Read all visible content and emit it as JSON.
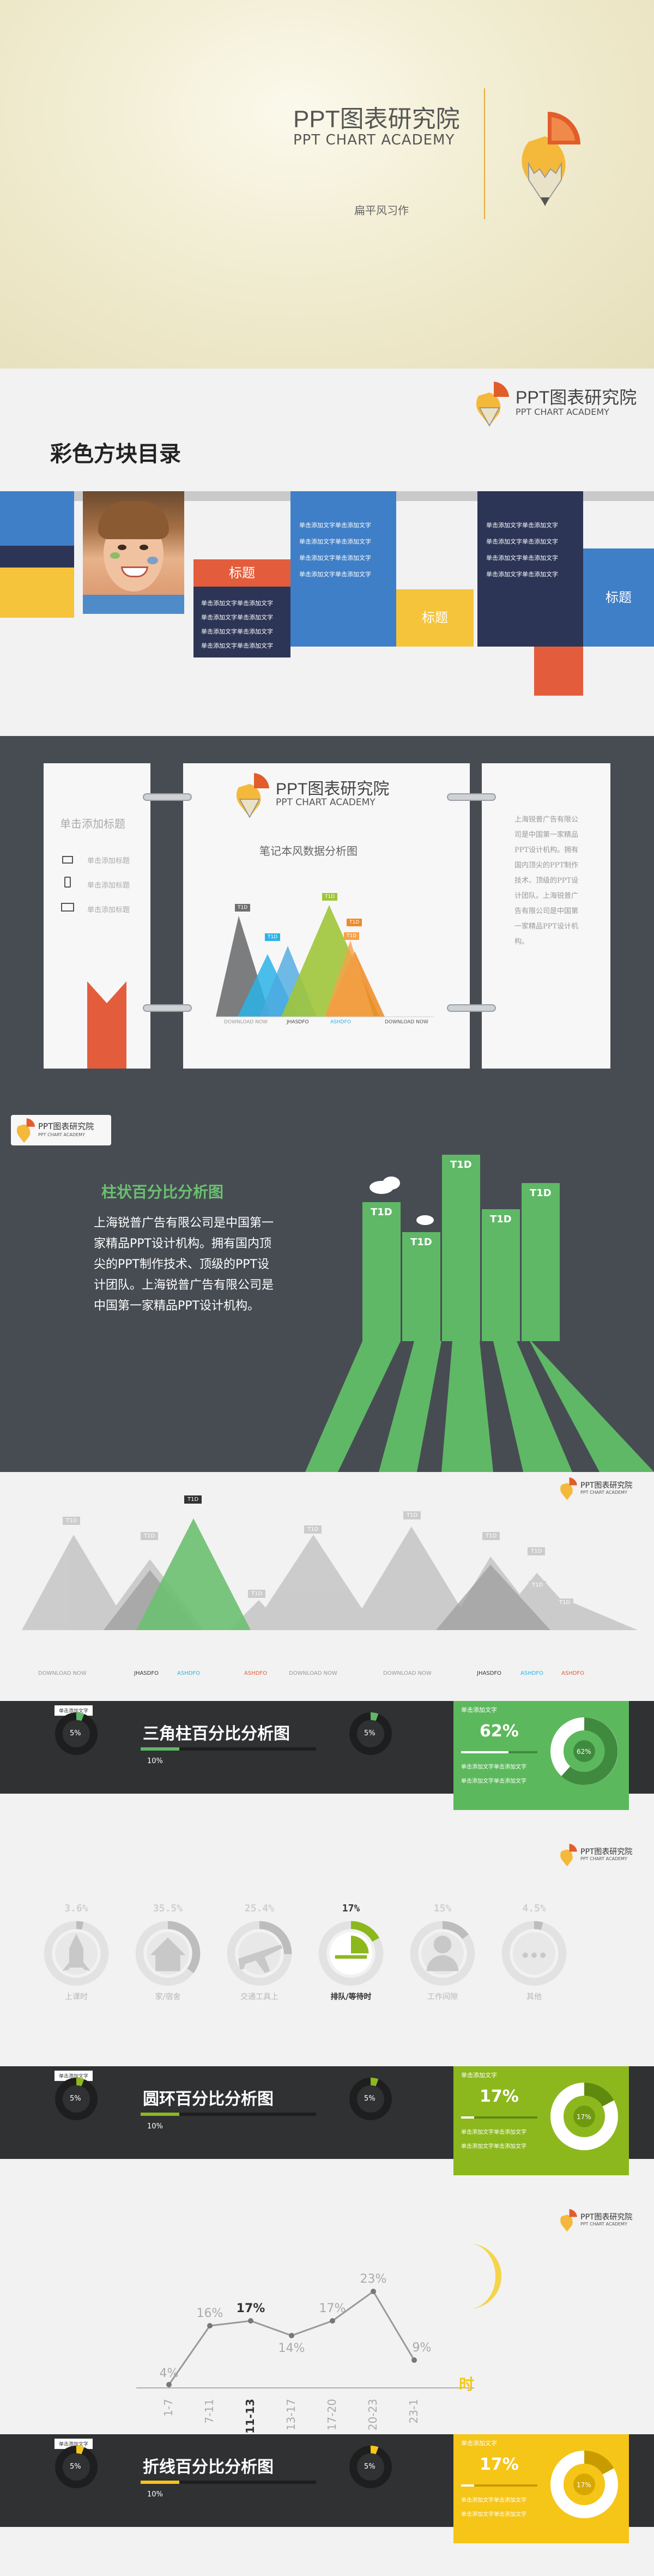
{
  "cover": {
    "title_cn": "PPT图表研究院",
    "title_en": "PPT CHART ACADEMY",
    "subtitle": "扁平风习作"
  },
  "brand": {
    "name_cn": "PPT图表研究院",
    "name_en": "PPT CHART ACADEMY"
  },
  "catalog": {
    "title": "彩色方块目录",
    "label": "标题",
    "filler": "单击添加文字单击添加文字",
    "colors": {
      "blue": "#3f7fc7",
      "yellow": "#f5c43a",
      "red": "#e35d3c",
      "navy": "#2c3556",
      "grey": "#c9c9c9"
    }
  },
  "notebook": {
    "left_title": "单击添加标题",
    "left_items": [
      "单击添加标题",
      "单击添加标题",
      "单击添加标题"
    ],
    "center_title": "笔记本风数据分析图",
    "tags": [
      "T1D",
      "T1D",
      "T1D",
      "T1D",
      "T1D"
    ],
    "x_labels": [
      "DOWNLOAD NOW",
      "JHASDFO",
      "ASHDFO",
      "DOWNLOAD NOW"
    ],
    "right_text": "上海锐普广告有限公司是中国第一家精品PPT设计机构。拥有国内顶尖的PPT制作技术、顶级的PPT设计团队。上海锐普广告有限公司是中国第一家精品PPT设计机构。"
  },
  "column": {
    "title": "柱状百分比分析图",
    "body": "上海锐普广告有限公司是中国第一家精品PPT设计机构。拥有国内顶尖的PPT制作技术、顶级的PPT设计团队。上海锐普广告有限公司是中国第一家精品PPT设计机构。",
    "bar_labels": [
      "T1D",
      "T1D",
      "T1D",
      "T1D",
      "T1D"
    ]
  },
  "triangle": {
    "tags": [
      "T1D",
      "T1D",
      "T1D",
      "T1D",
      "T1D",
      "T1D",
      "T1D",
      "T1D",
      "T1D",
      "T1D"
    ],
    "x_labels": [
      "DOWNLOAD NOW",
      "JHASDFO",
      "ASHDFO",
      "ASHDFO",
      "DOWNLOAD NOW",
      "DOWNLOAD NOW",
      "JHASDFO",
      "ASHDFO",
      "ASHDFO"
    ]
  },
  "panel_a": {
    "title": "三角柱百分比分析图",
    "tag": "单击添加文字",
    "pct_small": "5%",
    "pct_bar": "10%",
    "card_tag": "单击添加文字",
    "card_pct": "62%",
    "card_lines": [
      "单击添加文字单击添加文字",
      "单击添加文字单击添加文字"
    ],
    "card_donut": "62%",
    "card_color": "#5cb85c"
  },
  "ring": {
    "items": [
      {
        "pct": "3.6%",
        "label": "上课时",
        "icon": "rocket-icon"
      },
      {
        "pct": "35.5%",
        "label": "家/宿舍",
        "icon": "home-icon"
      },
      {
        "pct": "25.4%",
        "label": "交通工具上",
        "icon": "plane-icon"
      },
      {
        "pct": "17%",
        "label": "排队/等待时",
        "icon": "clock-icon"
      },
      {
        "pct": "15%",
        "label": "工作间隙",
        "icon": "person-icon"
      },
      {
        "pct": "4.5%",
        "label": "其他",
        "icon": "dots-icon"
      }
    ]
  },
  "panel_b": {
    "title": "圆环百分比分析图",
    "tag": "单击添加文字",
    "pct_small": "5%",
    "pct_bar": "10%",
    "card_tag": "单击添加文字",
    "card_pct": "17%",
    "card_lines": [
      "单击添加文字单击添加文字",
      "单击添加文字单击添加文字"
    ],
    "card_donut": "17%",
    "card_color": "#8cb81e"
  },
  "chart_data": {
    "type": "line",
    "categories": [
      "1-7",
      "7-11",
      "11-13",
      "13-17",
      "17-20",
      "20-23",
      "23-1"
    ],
    "values": [
      4,
      16,
      17,
      14,
      17,
      23,
      9
    ],
    "labels": [
      "4%",
      "16%",
      "17%",
      "14%",
      "17%",
      "23%",
      "9%"
    ],
    "x_caption": "时"
  },
  "panel_c": {
    "title": "折线百分比分析图",
    "tag": "单击添加文字",
    "pct_small": "5%",
    "pct_bar": "10%",
    "card_tag": "单击添加文字",
    "card_pct": "17%",
    "card_lines": [
      "单击添加文字单击添加文字",
      "单击添加文字单击添加文字"
    ],
    "card_donut": "17%",
    "card_color": "#f5c518"
  }
}
